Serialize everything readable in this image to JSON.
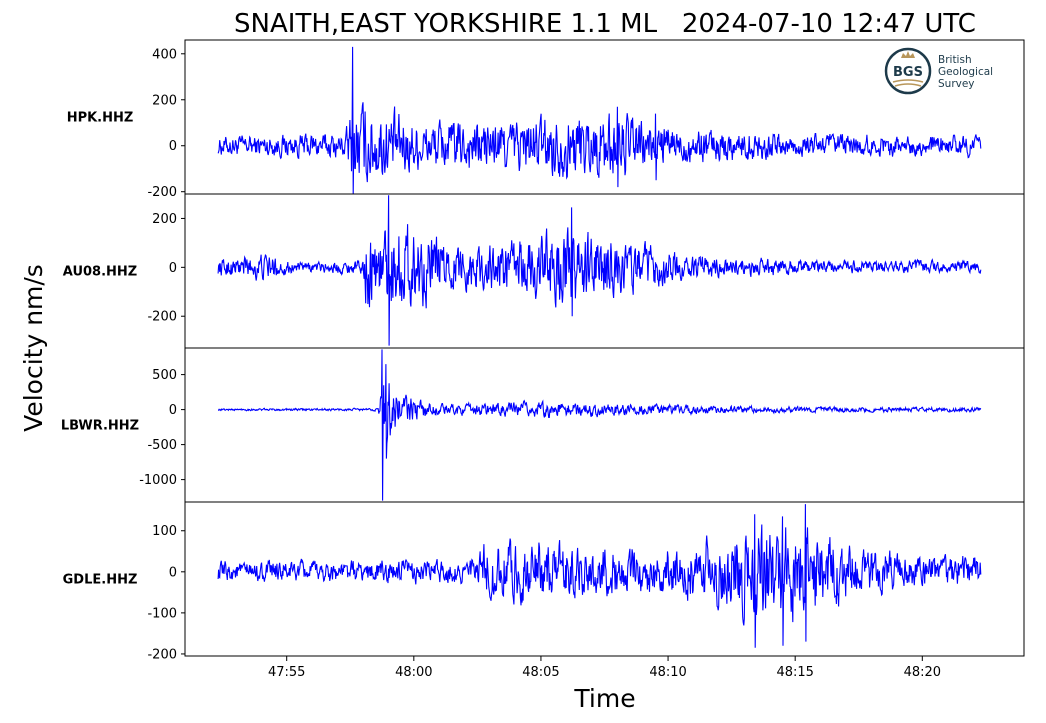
{
  "chart_data": {
    "type": "line",
    "title": "SNAITH,EAST YORKSHIRE 1.1 ML   2024-07-10 12:47 UTC",
    "xlabel": "Time",
    "ylabel": "Velocity nm/s",
    "line_color": "#0000ff",
    "grid": false,
    "x_range": [
      "47:51",
      "48:24"
    ],
    "x_ticks": [
      "47:55",
      "48:00",
      "48:05",
      "48:10",
      "48:15",
      "48:20"
    ],
    "trace_start": "47:52.3",
    "trace_end": "48:22.3",
    "panels": [
      {
        "station": "HPK.HHZ",
        "ylim": [
          -210,
          460
        ],
        "yticks": [
          "400",
          "200",
          "0",
          "-200"
        ],
        "ytick_values": [
          400,
          200,
          0,
          -200
        ],
        "background": 45,
        "pre_peak": 90,
        "events": [
          [
            57.6,
            430,
            -220
          ],
          [
            68.0,
            170,
            -180
          ],
          [
            69.5,
            140,
            -150
          ]
        ],
        "noise_envelope": [
          [
            52.3,
            45
          ],
          [
            57.3,
            60
          ],
          [
            57.6,
            200
          ],
          [
            60.5,
            110
          ],
          [
            63.5,
            120
          ],
          [
            67.5,
            160
          ],
          [
            70.5,
            80
          ],
          [
            75,
            60
          ],
          [
            80,
            45
          ],
          [
            82.3,
            50
          ]
        ]
      },
      {
        "station": "AU08.HHZ",
        "ylim": [
          -330,
          300
        ],
        "yticks": [
          "200",
          "0",
          "-200"
        ],
        "ytick_values": [
          200,
          0,
          -200
        ],
        "background": 20,
        "pre_peak": 70,
        "events": [
          [
            59.0,
            295,
            -320
          ],
          [
            66.2,
            245,
            -200
          ]
        ],
        "noise_envelope": [
          [
            52.3,
            35
          ],
          [
            54.0,
            60
          ],
          [
            55.5,
            20
          ],
          [
            58.0,
            30
          ],
          [
            58.1,
            170
          ],
          [
            59.8,
            190
          ],
          [
            61.5,
            90
          ],
          [
            63.5,
            110
          ],
          [
            66.0,
            170
          ],
          [
            68.0,
            120
          ],
          [
            71.0,
            50
          ],
          [
            75.0,
            30
          ],
          [
            82.3,
            25
          ]
        ]
      },
      {
        "station": "LBWR.HHZ",
        "ylim": [
          -1320,
          880
        ],
        "yticks": [
          "500",
          "0",
          "-500",
          "-1000"
        ],
        "ytick_values": [
          500,
          0,
          -500,
          -1000
        ],
        "background": 15,
        "pre_peak": 15,
        "events": [
          [
            58.75,
            860,
            -1300
          ],
          [
            58.9,
            650,
            -700
          ]
        ],
        "noise_envelope": [
          [
            52.3,
            15
          ],
          [
            58.6,
            20
          ],
          [
            58.8,
            650
          ],
          [
            59.3,
            300
          ],
          [
            60.5,
            110
          ],
          [
            62.0,
            80
          ],
          [
            65.0,
            120
          ],
          [
            70.0,
            70
          ],
          [
            75.0,
            40
          ],
          [
            82.3,
            30
          ]
        ]
      },
      {
        "station": "GDLE.HHZ",
        "ylim": [
          -205,
          170
        ],
        "yticks": [
          "100",
          "0",
          "-100",
          "-200"
        ],
        "ytick_values": [
          100,
          0,
          -100,
          -200
        ],
        "background": 25,
        "pre_peak": 30,
        "events": [
          [
            73.4,
            140,
            -185
          ],
          [
            75.4,
            165,
            -170
          ],
          [
            74.5,
            135,
            -180
          ]
        ],
        "noise_envelope": [
          [
            52.3,
            25
          ],
          [
            62.5,
            30
          ],
          [
            62.8,
            80
          ],
          [
            65.0,
            75
          ],
          [
            68.0,
            55
          ],
          [
            71.0,
            70
          ],
          [
            73.5,
            120
          ],
          [
            75.5,
            120
          ],
          [
            77.5,
            60
          ],
          [
            80.0,
            40
          ],
          [
            82.3,
            40
          ]
        ]
      }
    ]
  },
  "logo": {
    "mark": "BGS",
    "lines": [
      "British",
      "Geological",
      "Survey"
    ],
    "colors": {
      "ring": "#1d3a4a",
      "gold": "#b8965a",
      "text": "#1d3a4a"
    }
  }
}
